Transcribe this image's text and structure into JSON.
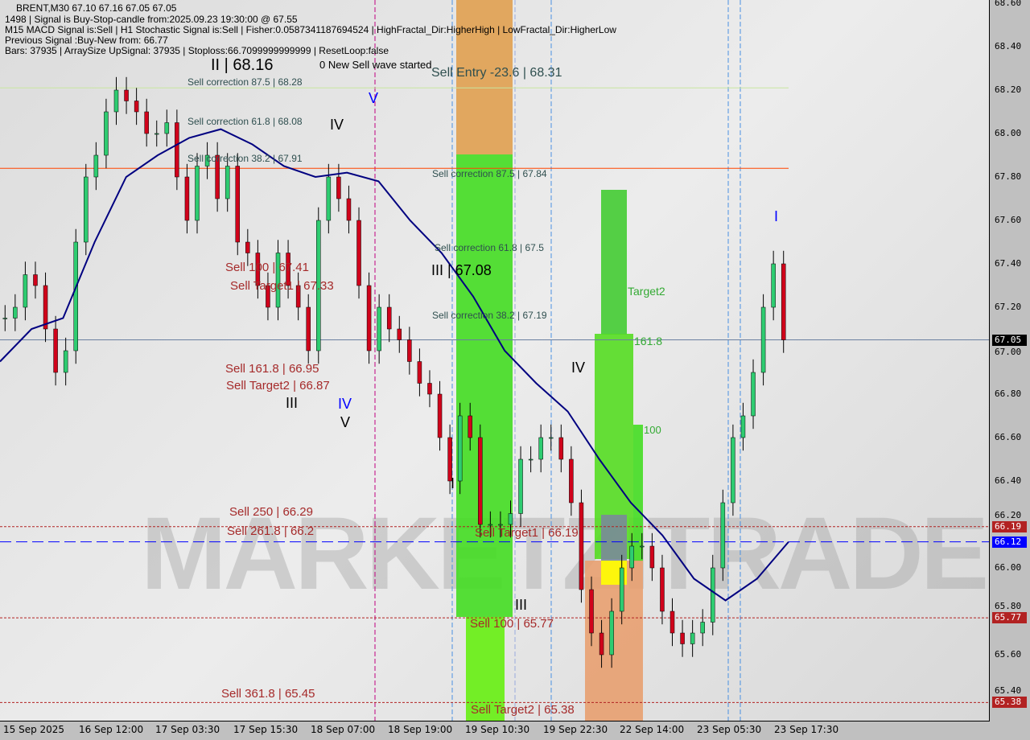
{
  "header": {
    "symbol_line": "BRENT,M30  67.10 67.16 67.05 67.05",
    "line1": "1498 | Signal is Buy-Stop-candle from:2025.09.23 19:30:00 @ 67.55",
    "line2": "M15 MACD Signal is:Sell | H1 Stochastic Signal is:Sell | Fisher:0.0587341187694524 | HighFractal_Dir:HigherHigh | LowFractal_Dir:HigherLow",
    "line3": "Previous Signal :Buy-New from: 66.77",
    "line4": "Bars: 37935 | ArraySize UpSignal: 37935 | Stoploss:66.7099999999999 | ResetLoop:false"
  },
  "watermark": "MARKETZITRADE",
  "labels": [
    "II | 68.16",
    "0 New Sell wave started",
    "Sell Entry -23.6 | 68.31",
    "Sell correction 87.5 | 68.28",
    "Sell correction 61.8 | 68.08",
    "Sell correction 38.2 | 67.91",
    "Sell correction 87.5 | 67.84",
    "Sell correction 61.8 | 67.5",
    "III | 67.08",
    "Sell correction 38.2 | 67.19",
    "Sell 100 | 67.41",
    "Sell Target1 | 67.33",
    "Sell 161.8 | 66.95",
    "Sell Target2 | 66.87",
    "Sell  250 | 66.29",
    "Sell  261.8 | 66.2",
    "Sell Target1 | 66.19",
    "Sell 100 | 65.77",
    "Sell  361.8 | 65.45",
    "Sell Target2 | 65.38",
    "Target2",
    "161.8",
    "100",
    "IV",
    "V",
    "IV",
    "V",
    "III",
    "IV",
    "I",
    "III",
    "I"
  ],
  "chart_data": {
    "type": "candlestick",
    "symbol": "BRENT",
    "timeframe": "M30",
    "ylim": [
      65.4,
      68.6
    ],
    "y_ticks": [
      "68.60",
      "68.40",
      "68.20",
      "68.00",
      "67.80",
      "67.60",
      "67.40",
      "67.20",
      "67.00",
      "66.80",
      "66.60",
      "66.40",
      "66.20",
      "66.00",
      "65.80",
      "65.60",
      "65.40"
    ],
    "x_ticks": [
      "15 Sep 2025",
      "16 Sep 12:00",
      "17 Sep 03:30",
      "17 Sep 15:30",
      "18 Sep 07:00",
      "18 Sep 19:00",
      "19 Sep 10:30",
      "19 Sep 22:30",
      "22 Sep 14:00",
      "23 Sep 05:30",
      "23 Sep 17:30"
    ],
    "closes": [
      67.15,
      67.2,
      67.35,
      67.3,
      67.1,
      66.9,
      67.0,
      67.5,
      67.8,
      67.9,
      68.1,
      68.2,
      68.15,
      68.1,
      68.0,
      68.0,
      68.05,
      67.8,
      67.6,
      67.85,
      67.9,
      67.7,
      67.85,
      67.5,
      67.45,
      67.3,
      67.2,
      67.45,
      67.3,
      67.2,
      67.0,
      67.6,
      67.8,
      67.7,
      67.6,
      67.3,
      67.0,
      67.2,
      67.1,
      67.05,
      66.95,
      66.85,
      66.8,
      66.6,
      66.4,
      66.7,
      66.6,
      66.2,
      66.2,
      66.2,
      66.25,
      66.5,
      66.5,
      66.6,
      66.6,
      66.5,
      66.3,
      65.9,
      65.7,
      65.6,
      65.8,
      66.0,
      66.1,
      66.1,
      66.0,
      65.8,
      65.7,
      65.65,
      65.7,
      65.75,
      66.0,
      66.3,
      66.6,
      66.7,
      66.9,
      67.2,
      67.4,
      67.05
    ],
    "moving_average": [
      66.95,
      67.1,
      67.15,
      67.5,
      67.8,
      67.9,
      67.98,
      68.02,
      67.95,
      67.85,
      67.8,
      67.82,
      67.78,
      67.6,
      67.45,
      67.25,
      67.0,
      66.85,
      66.72,
      66.5,
      66.3,
      66.15,
      65.95,
      65.85,
      65.95,
      66.12
    ],
    "current_price": "67.05",
    "price_badges": [
      {
        "value": "67.05",
        "color": "#000000"
      },
      {
        "value": "66.19",
        "color": "#b22222"
      },
      {
        "value": "66.12",
        "color": "#0000ff"
      },
      {
        "value": "65.77",
        "color": "#b22222"
      },
      {
        "value": "65.38",
        "color": "#b22222"
      }
    ],
    "levels": [
      {
        "price": 67.84,
        "color": "#ff4500",
        "style": "solid"
      },
      {
        "price": 68.21,
        "color": "#c8e6a0",
        "style": "solid"
      },
      {
        "price": 67.05,
        "color": "#6a7fa0",
        "style": "solid"
      },
      {
        "price": 66.19,
        "color": "#b22222",
        "style": "dotted"
      },
      {
        "price": 66.12,
        "color": "#0000ff",
        "style": "dashed"
      },
      {
        "price": 65.77,
        "color": "#b22222",
        "style": "dotted"
      },
      {
        "price": 65.38,
        "color": "#b22222",
        "style": "dotted"
      }
    ],
    "colors": {
      "bull": "#2ecc71",
      "bear": "#d0021b",
      "ma": "#000080",
      "zone_green": "#44dd22",
      "zone_orange": "#e8a060",
      "zone_yellow": "#ffff00"
    }
  }
}
